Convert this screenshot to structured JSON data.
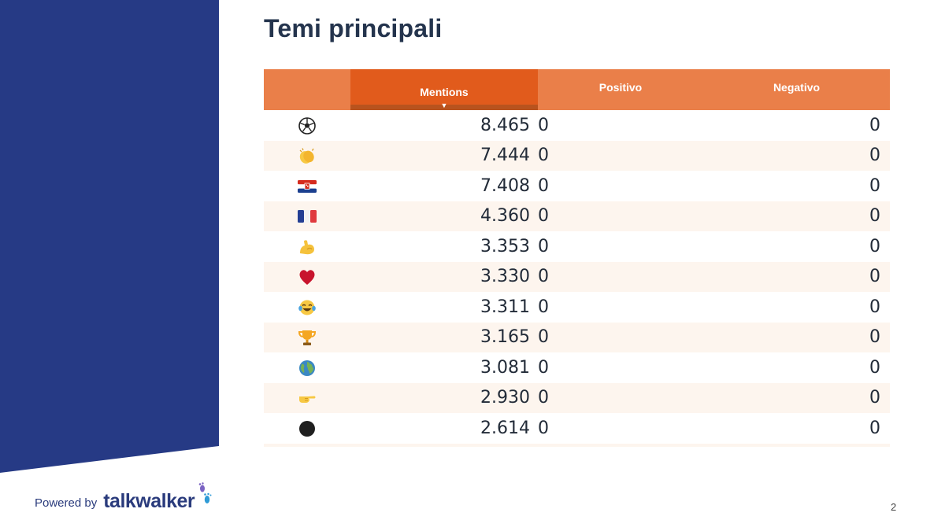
{
  "slide": {
    "title": "Temi principali",
    "page_number": "2",
    "colors": {
      "panel_blue": "#263a85",
      "header_orange": "#ea7f49",
      "sorted_orange": "#e15b1c",
      "title": "#24344d"
    }
  },
  "table": {
    "headers": {
      "mentions": "Mentions",
      "positive": "Positivo",
      "negative": "Negativo"
    },
    "sort_indicator": "▼",
    "rows": [
      {
        "icon": "soccer-ball-icon",
        "mentions": "8.465",
        "positive": "0",
        "negative": "0"
      },
      {
        "icon": "clapping-hands-icon",
        "mentions": "7.444",
        "positive": "0",
        "negative": "0"
      },
      {
        "icon": "croatia-flag-icon",
        "mentions": "7.408",
        "positive": "0",
        "negative": "0"
      },
      {
        "icon": "france-flag-icon",
        "mentions": "4.360",
        "positive": "0",
        "negative": "0"
      },
      {
        "icon": "flexed-biceps-icon",
        "mentions": "3.353",
        "positive": "0",
        "negative": "0"
      },
      {
        "icon": "red-heart-icon",
        "mentions": "3.330",
        "positive": "0",
        "negative": "0"
      },
      {
        "icon": "tears-of-joy-icon",
        "mentions": "3.311",
        "positive": "0",
        "negative": "0"
      },
      {
        "icon": "trophy-icon",
        "mentions": "3.165",
        "positive": "0",
        "negative": "0"
      },
      {
        "icon": "globe-icon",
        "mentions": "3.081",
        "positive": "0",
        "negative": "0"
      },
      {
        "icon": "pointing-hand-icon",
        "mentions": "2.930",
        "positive": "0",
        "negative": "0"
      },
      {
        "icon": "black-circle-icon",
        "mentions": "2.614",
        "positive": "0",
        "negative": "0"
      }
    ]
  },
  "footer": {
    "powered_by": "Powered by",
    "brand": "talkwalker"
  }
}
